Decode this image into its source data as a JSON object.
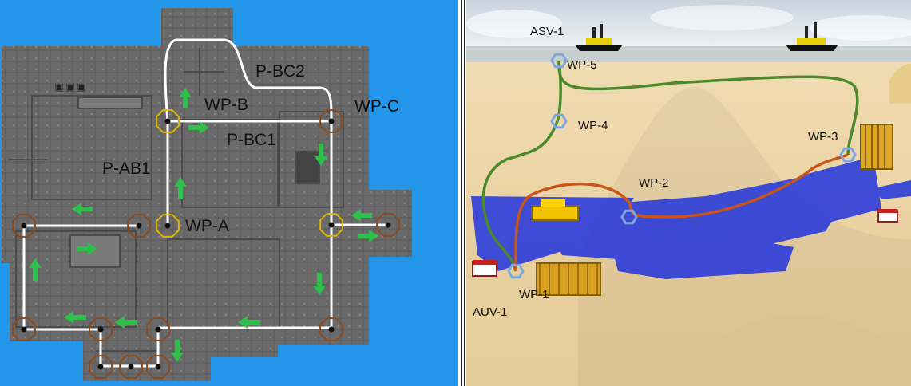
{
  "left_view": {
    "labels": {
      "wp_a": "WP-A",
      "wp_b": "WP-B",
      "wp_c": "WP-C",
      "p_ab1": "P-AB1",
      "p_bc1": "P-BC1",
      "p_bc2": "P-BC2"
    },
    "icons": [
      "waypoint-octagon-icon",
      "arrow-up-icon",
      "arrow-down-icon",
      "arrow-left-icon",
      "arrow-right-icon"
    ],
    "colors": {
      "ocean": "#1e90e8",
      "structure": "#6b6b6b",
      "path": "#ffffff",
      "octagon_brown": "#8b4a1c",
      "octagon_gold": "#e0b400",
      "arrow_green": "#2ec04a"
    }
  },
  "right_view": {
    "labels": {
      "asv": "ASV-1",
      "auv": "AUV-1",
      "wp1": "WP-1",
      "wp2": "WP-2",
      "wp3": "WP-3",
      "wp4": "WP-4",
      "wp5": "WP-5"
    },
    "icons": [
      "ship-icon",
      "auv-icon",
      "subsea-structure-icon",
      "waypoint-hexagon-icon"
    ],
    "colors": {
      "sky": "#dfe6ee",
      "sand": "#ead3a6",
      "sonar": "#1a2ee0",
      "path_green": "#4a8a2c",
      "path_orange": "#c8561a",
      "hex": "#7da7e0"
    }
  }
}
